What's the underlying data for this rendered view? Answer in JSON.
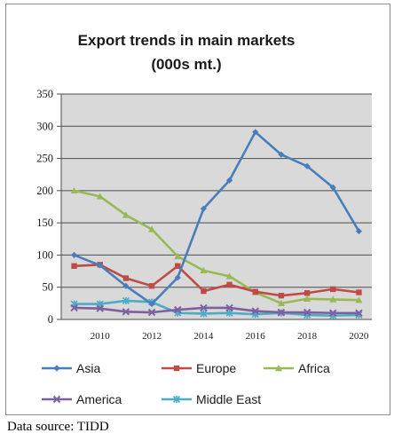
{
  "chart_data": {
    "type": "line",
    "title_lines": [
      "Export trends in main markets",
      "(000s mt.)"
    ],
    "x": [
      2009,
      2010,
      2011,
      2012,
      2013,
      2014,
      2015,
      2016,
      2017,
      2018,
      2019,
      2020
    ],
    "x_tick_labels": [
      "2010",
      "2012",
      "2014",
      "2016",
      "2018",
      "2020"
    ],
    "x_tick_values": [
      2010,
      2012,
      2014,
      2016,
      2018,
      2020
    ],
    "y_tick_labels": [
      "0",
      "50",
      "100",
      "150",
      "200",
      "250",
      "300",
      "350"
    ],
    "ylim": [
      0,
      350
    ],
    "xlim": [
      2008.5,
      2020.5
    ],
    "grid": "horizontal",
    "plot_background": "#d9d9d9",
    "legend_position": "bottom",
    "series": [
      {
        "name": "Asia",
        "color": "#4a7ebb",
        "marker": "diamond",
        "values": [
          100,
          84,
          52,
          24,
          65,
          172,
          216,
          291,
          256,
          238,
          205,
          137
        ]
      },
      {
        "name": "Europe",
        "color": "#be4b48",
        "marker": "square",
        "values": [
          83,
          85,
          64,
          52,
          83,
          44,
          54,
          43,
          37,
          41,
          47,
          42
        ]
      },
      {
        "name": "Africa",
        "color": "#98b954",
        "marker": "triangle",
        "values": [
          200,
          191,
          162,
          140,
          98,
          76,
          67,
          42,
          25,
          32,
          31,
          30
        ]
      },
      {
        "name": "America",
        "color": "#7d60a0",
        "marker": "x",
        "values": [
          18,
          17,
          12,
          11,
          15,
          18,
          18,
          13,
          11,
          11,
          10,
          10
        ]
      },
      {
        "name": "Middle East",
        "color": "#4bacc6",
        "marker": "star",
        "values": [
          24,
          24,
          29,
          27,
          10,
          9,
          10,
          8,
          10,
          7,
          6,
          7
        ]
      }
    ]
  },
  "source_note": "Data source: TIDD"
}
